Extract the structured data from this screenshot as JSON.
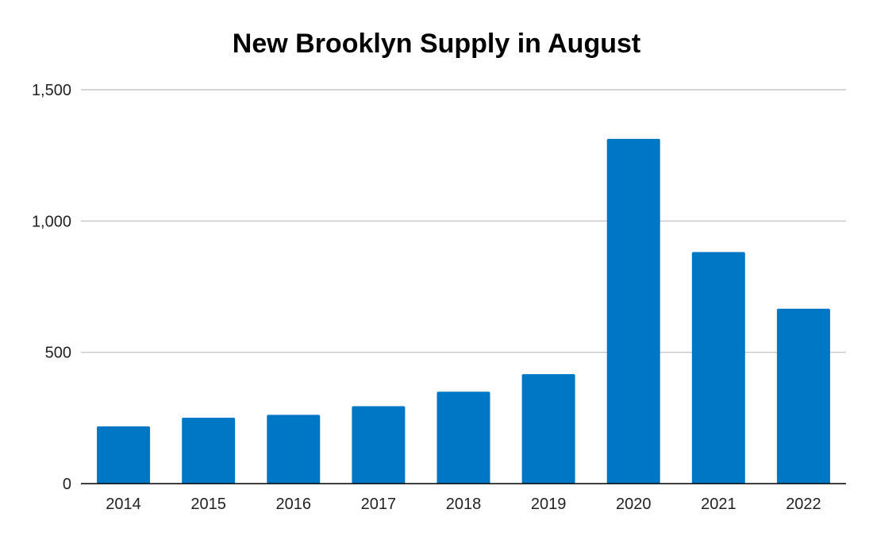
{
  "chart_data": {
    "type": "bar",
    "title": "New Brooklyn Supply in August",
    "xlabel": "",
    "ylabel": "",
    "categories": [
      "2014",
      "2015",
      "2016",
      "2017",
      "2018",
      "2019",
      "2020",
      "2021",
      "2022"
    ],
    "values": [
      218,
      251,
      262,
      295,
      350,
      417,
      1313,
      882,
      666
    ],
    "ylim": [
      0,
      1500
    ],
    "yticks": [
      0,
      500,
      1000,
      1500
    ],
    "ytick_labels": [
      "0",
      "500",
      "1,000",
      "1,500"
    ],
    "grid": true,
    "legend": "none",
    "colors": {
      "bar": "#0077c5",
      "grid": "#bdbdbd",
      "axis": "#000000"
    }
  }
}
